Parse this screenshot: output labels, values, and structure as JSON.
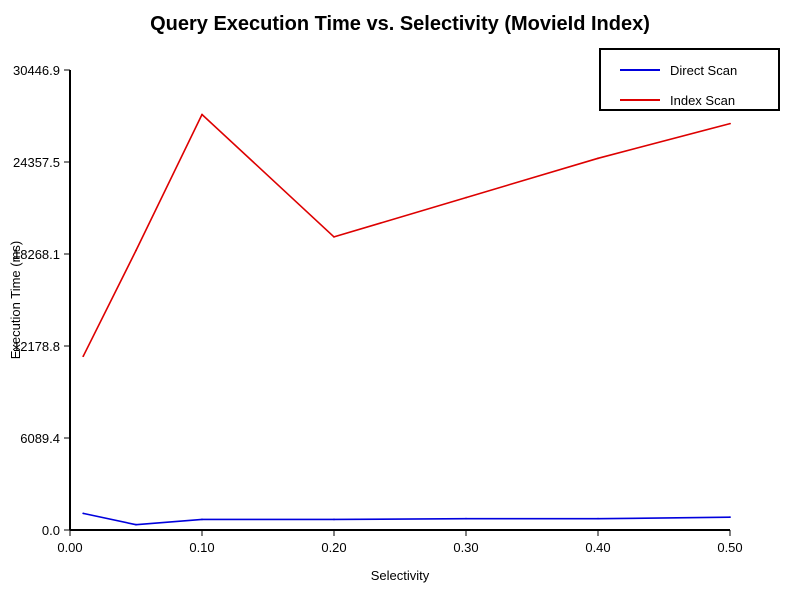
{
  "chart_data": {
    "type": "line",
    "title": "Query Execution Time vs. Selectivity (MovieId Index)",
    "xlabel": "Selectivity",
    "ylabel": "Execution Time (ms)",
    "xlim": [
      0.0,
      0.5
    ],
    "ylim": [
      0.0,
      30446.9
    ],
    "xticks": [
      0.0,
      0.1,
      0.2,
      0.3,
      0.4,
      0.5
    ],
    "xtick_labels": [
      "0.00",
      "0.10",
      "0.20",
      "0.30",
      "0.40",
      "0.50"
    ],
    "yticks": [
      0.0,
      6089.4,
      12178.8,
      18268.1,
      24357.5,
      30446.9
    ],
    "ytick_labels": [
      "0.0",
      "6089.4",
      "12178.8",
      "18268.1",
      "24357.5",
      "30446.9"
    ],
    "grid": false,
    "legend_position": "top-right",
    "series": [
      {
        "name": "Direct Scan",
        "color": "#0000dd",
        "x": [
          0.01,
          0.05,
          0.1,
          0.2,
          0.3,
          0.4,
          0.5
        ],
        "values": [
          1100,
          350,
          700,
          700,
          750,
          750,
          850
        ]
      },
      {
        "name": "Index Scan",
        "color": "#dd0000",
        "x": [
          0.01,
          0.05,
          0.1,
          0.2,
          0.3,
          0.4,
          0.5
        ],
        "values": [
          11500,
          18500,
          27500,
          19400,
          22000,
          24600,
          26900
        ]
      }
    ]
  }
}
